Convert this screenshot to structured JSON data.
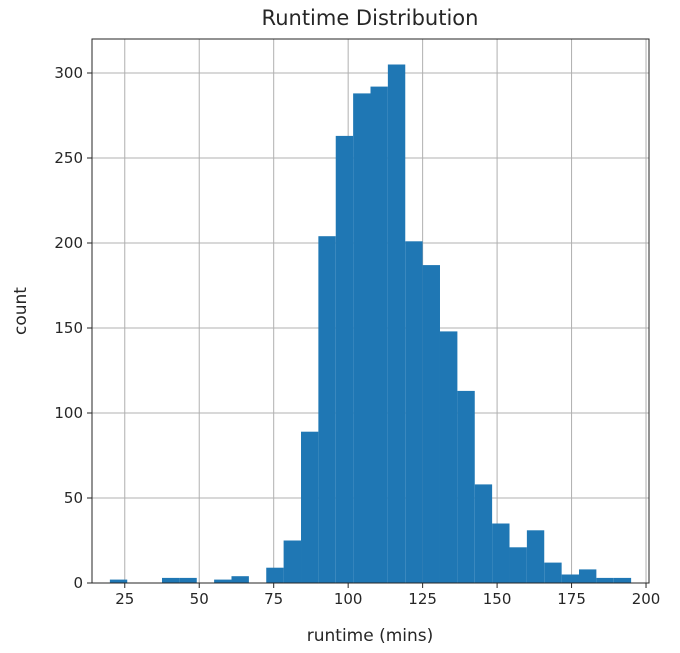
{
  "chart_data": {
    "type": "bar",
    "title": "Runtime Distribution",
    "xlabel": "runtime (mins)",
    "ylabel": "count",
    "xlim": [
      14,
      201
    ],
    "ylim": [
      0,
      320
    ],
    "xticks": [
      "25",
      "50",
      "75",
      "100",
      "125",
      "150",
      "175",
      "200"
    ],
    "yticks": [
      "0",
      "50",
      "100",
      "150",
      "200",
      "250",
      "300"
    ],
    "grid": true,
    "bar_color": "#1f77b4",
    "bin_edges": [
      20,
      25.83,
      31.67,
      37.5,
      43.33,
      49.17,
      55,
      60.83,
      66.67,
      72.5,
      78.33,
      84.17,
      90,
      95.83,
      101.67,
      107.5,
      113.33,
      119.17,
      125,
      130.83,
      136.67,
      142.5,
      148.33,
      154.17,
      160,
      165.83,
      171.67,
      177.5,
      183.33,
      189.17,
      195
    ],
    "values": [
      2,
      0,
      0,
      3,
      3,
      0,
      2,
      4,
      0,
      9,
      25,
      89,
      204,
      263,
      288,
      292,
      305,
      201,
      187,
      148,
      113,
      58,
      35,
      21,
      31,
      12,
      5,
      8,
      3,
      3
    ]
  }
}
